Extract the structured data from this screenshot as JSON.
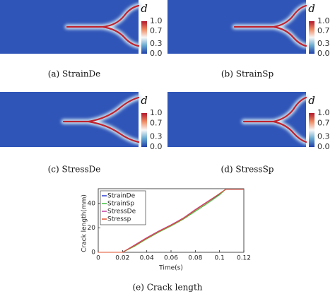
{
  "panels": [
    {
      "caption": "(a) StrainDe"
    },
    {
      "caption": "(b) StrainSp"
    },
    {
      "caption": "(c) StressDe"
    },
    {
      "caption": "(d) StressSp"
    }
  ],
  "colorbar": {
    "label": "d",
    "ticks": [
      "1.0",
      "0.7",
      "0.3",
      "0.0"
    ]
  },
  "chart_data": {
    "type": "line",
    "caption": "(e) Crack length",
    "xlabel": "Time(s)",
    "ylabel": "Crack length(mm)",
    "x": [
      0,
      0.02,
      0.03,
      0.04,
      0.05,
      0.06,
      0.07,
      0.08,
      0.09,
      0.1,
      0.105,
      0.12
    ],
    "series": [
      {
        "name": "StrainDe",
        "color": "#2c3fd1",
        "values": [
          0,
          0,
          5.5,
          11.5,
          17,
          22,
          27.5,
          34.5,
          41,
          47.5,
          51.5,
          51.5
        ]
      },
      {
        "name": "StrainSp",
        "color": "#3dbf3d",
        "values": [
          0,
          0,
          5,
          11,
          16.5,
          21.5,
          27,
          33.5,
          40,
          47,
          51.5,
          51.5
        ]
      },
      {
        "name": "StressDe",
        "color": "#c23c9c",
        "values": [
          0,
          0,
          6,
          12,
          17.5,
          22.5,
          28,
          35,
          41.5,
          48,
          51.5,
          51.5
        ]
      },
      {
        "name": "Stressp",
        "color": "#e0502f",
        "values": [
          0,
          0,
          5.5,
          11.5,
          17,
          22,
          27.5,
          34.5,
          41,
          48,
          51.5,
          51.5
        ]
      }
    ],
    "xlim": [
      0,
      0.12
    ],
    "xticks": [
      0,
      0.02,
      0.04,
      0.06,
      0.08,
      0.1,
      0.12
    ],
    "ylim": [
      0,
      52
    ],
    "yticks": [
      0,
      20,
      40
    ],
    "legend": "upper left"
  }
}
